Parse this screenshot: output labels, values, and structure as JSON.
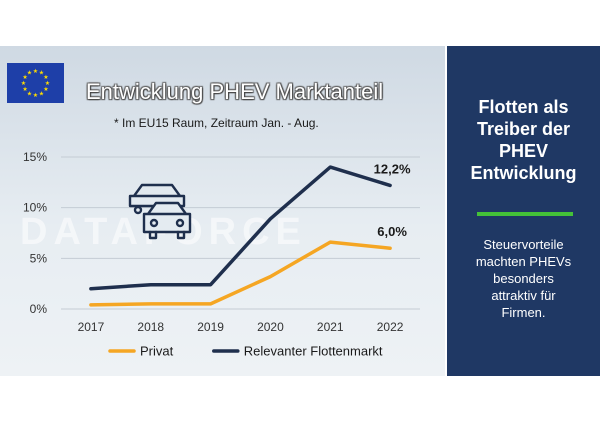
{
  "header": {
    "title": "Entwicklung PHEV Marktanteil",
    "subtitle": "* Im EU15 Raum, Zeitraum Jan. - Aug.",
    "watermark": "DATAFORCE"
  },
  "sidebar": {
    "title_lines": [
      "Flotten als",
      "Treiber der",
      "PHEV",
      "Entwicklung"
    ],
    "text_lines": [
      "Steuervorteile",
      "machten PHEVs",
      "besonders",
      "attraktiv für",
      "Firmen."
    ],
    "accent_color": "#44c238",
    "background_color": "#1f3864"
  },
  "icons": [
    "eu-flag-icon",
    "cars-icon"
  ],
  "chart_data": {
    "type": "line",
    "categories": [
      "2017",
      "2018",
      "2019",
      "2020",
      "2021",
      "2022"
    ],
    "y_ticks": [
      "0%",
      "5%",
      "10%",
      "15%"
    ],
    "ylim": [
      0,
      15
    ],
    "grid": true,
    "legend_position": "bottom",
    "series": [
      {
        "name": "Privat",
        "color": "#f5a623",
        "values": [
          0.4,
          0.5,
          0.5,
          3.2,
          6.6,
          6.0
        ],
        "end_label": "6,0%"
      },
      {
        "name": "Relevanter Flottenmarkt",
        "color": "#1f2f4d",
        "values": [
          2.0,
          2.4,
          2.4,
          8.9,
          14.0,
          12.2
        ],
        "end_label": "12,2%"
      }
    ]
  }
}
